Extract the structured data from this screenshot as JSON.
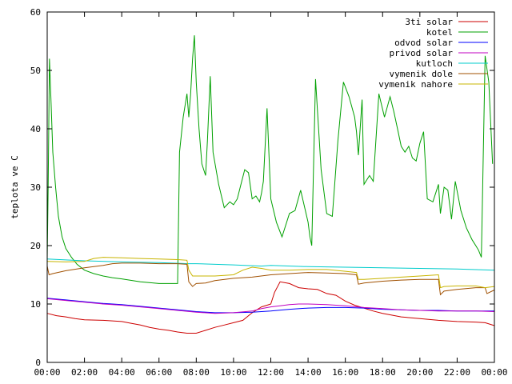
{
  "chart_data": {
    "type": "line",
    "title": "",
    "xlabel": "",
    "ylabel": "teplota ve C",
    "ylim": [
      0,
      60
    ],
    "xlim": [
      0,
      24
    ],
    "x_tick_labels": [
      "00:00",
      "02:00",
      "04:00",
      "06:00",
      "08:00",
      "10:00",
      "12:00",
      "14:00",
      "16:00",
      "18:00",
      "20:00",
      "22:00",
      "00:00"
    ],
    "y_tick_labels": [
      "0",
      "10",
      "20",
      "30",
      "40",
      "50",
      "60"
    ],
    "grid": false,
    "legend_position": "top-right",
    "series": [
      {
        "name": "3ti solar",
        "color": "#cc0000",
        "x": [
          0,
          0.5,
          1,
          1.5,
          2,
          3,
          4,
          4.5,
          5,
          5.5,
          6,
          6.5,
          7,
          7.5,
          8,
          8.5,
          9,
          9.5,
          10,
          10.5,
          11,
          11.5,
          11.8,
          12,
          12.2,
          12.5,
          13,
          13.5,
          14,
          14.5,
          15,
          15.5,
          16,
          16.5,
          17,
          17.5,
          18,
          19,
          20,
          21,
          22,
          23,
          23.5,
          24
        ],
        "y": [
          8.4,
          8.0,
          7.8,
          7.5,
          7.3,
          7.2,
          7.0,
          6.7,
          6.4,
          6.0,
          5.7,
          5.5,
          5.2,
          5.0,
          5.0,
          5.5,
          6.0,
          6.4,
          6.8,
          7.2,
          8.5,
          9.5,
          9.8,
          10.0,
          12.0,
          13.8,
          13.5,
          12.8,
          12.6,
          12.5,
          11.8,
          11.5,
          10.5,
          9.8,
          9.3,
          8.8,
          8.4,
          7.8,
          7.5,
          7.2,
          7.0,
          6.9,
          6.8,
          6.3
        ]
      },
      {
        "name": "kotel",
        "color": "#00a000",
        "x": [
          0,
          0.05,
          0.12,
          0.2,
          0.3,
          0.45,
          0.6,
          0.8,
          1.0,
          1.3,
          1.6,
          2.0,
          2.5,
          3.0,
          3.5,
          4.0,
          5.0,
          6.0,
          7.0,
          7.1,
          7.3,
          7.5,
          7.6,
          7.7,
          7.8,
          7.9,
          8.0,
          8.15,
          8.3,
          8.5,
          8.6,
          8.75,
          8.9,
          9.2,
          9.5,
          9.8,
          10.0,
          10.2,
          10.4,
          10.6,
          10.8,
          11.0,
          11.2,
          11.4,
          11.5,
          11.6,
          11.8,
          12.0,
          12.3,
          12.6,
          13.0,
          13.3,
          13.6,
          14.0,
          14.1,
          14.2,
          14.4,
          14.7,
          15.0,
          15.3,
          15.6,
          15.9,
          16.2,
          16.5,
          16.6,
          16.7,
          16.9,
          17.0,
          17.3,
          17.5,
          17.8,
          18.1,
          18.4,
          18.6,
          18.8,
          19.0,
          19.2,
          19.4,
          19.6,
          19.8,
          20.0,
          20.2,
          20.4,
          20.7,
          20.9,
          21.0,
          21.1,
          21.3,
          21.5,
          21.7,
          21.9,
          22.2,
          22.5,
          22.8,
          23.0,
          23.15,
          23.3,
          23.5,
          23.7,
          23.9
        ],
        "y": [
          17.5,
          30,
          52,
          45,
          36,
          30,
          25,
          21.5,
          19.5,
          18.0,
          16.8,
          15.8,
          15.2,
          14.8,
          14.5,
          14.3,
          13.8,
          13.5,
          13.5,
          36,
          42,
          46,
          42,
          46,
          52,
          56,
          48,
          40,
          34,
          32,
          38,
          49,
          36,
          30.5,
          26.5,
          27.5,
          27,
          28,
          30.5,
          33,
          32.5,
          28,
          28.5,
          27.5,
          29,
          31,
          43.5,
          28,
          24,
          21.5,
          25.5,
          26,
          29.5,
          24,
          21.5,
          20,
          48.5,
          33,
          25.5,
          25,
          38,
          48,
          45.5,
          42,
          39.5,
          35.5,
          45,
          30.5,
          32,
          31,
          46,
          42,
          45.5,
          43,
          40,
          37,
          36,
          37,
          35,
          34.5,
          37.5,
          39.5,
          28,
          27.5,
          29.5,
          30.5,
          25.5,
          30,
          29.5,
          24.5,
          31,
          26,
          23,
          21,
          20,
          19.2,
          18,
          52.5,
          48,
          34
        ]
      },
      {
        "name": "odvod solar",
        "color": "#0000ff",
        "x": [
          0,
          1,
          2,
          3,
          4,
          5,
          6,
          7,
          8,
          9,
          10,
          11,
          12,
          13,
          14,
          15,
          16,
          17,
          18,
          19,
          20,
          21,
          22,
          23,
          24
        ],
        "y": [
          11.0,
          10.7,
          10.4,
          10.1,
          9.9,
          9.6,
          9.3,
          9.0,
          8.7,
          8.5,
          8.5,
          8.6,
          8.8,
          9.1,
          9.3,
          9.4,
          9.4,
          9.3,
          9.1,
          9.0,
          8.9,
          8.9,
          8.8,
          8.8,
          8.8
        ]
      },
      {
        "name": "privod solar",
        "color": "#c000c0",
        "x": [
          0,
          1,
          2,
          3,
          4,
          5,
          6,
          7,
          8,
          9,
          10,
          11,
          11.5,
          12,
          12.5,
          13,
          13.5,
          14,
          15,
          16,
          17,
          18,
          19,
          20,
          21,
          22,
          23,
          24
        ],
        "y": [
          10.9,
          10.6,
          10.3,
          10.0,
          9.8,
          9.5,
          9.2,
          8.9,
          8.6,
          8.4,
          8.5,
          8.8,
          9.2,
          9.5,
          9.7,
          9.9,
          10.0,
          10.0,
          9.9,
          9.7,
          9.4,
          9.2,
          9.0,
          8.9,
          8.8,
          8.8,
          8.8,
          8.7
        ]
      },
      {
        "name": "kutloch",
        "color": "#00cccc",
        "x": [
          0,
          2,
          4,
          6,
          7.6,
          8,
          10,
          11.5,
          12,
          14,
          16,
          18,
          20,
          22,
          24
        ],
        "y": [
          17.7,
          17.4,
          17.2,
          17.1,
          16.9,
          16.9,
          16.7,
          16.5,
          16.6,
          16.4,
          16.3,
          16.2,
          16.1,
          16.0,
          15.8
        ]
      },
      {
        "name": "vymenik dole",
        "color": "#a05000",
        "x": [
          0,
          0.1,
          0.3,
          1,
          2,
          3,
          3.5,
          4,
          5,
          6,
          7,
          7.5,
          7.6,
          7.8,
          8,
          8.5,
          9,
          10,
          11,
          12,
          13,
          14,
          15,
          16,
          16.6,
          16.7,
          17,
          18,
          19,
          20,
          21,
          21.1,
          21.3,
          22,
          23,
          23.5,
          23.6,
          24
        ],
        "y": [
          16.5,
          15.0,
          15.2,
          15.7,
          16.2,
          16.6,
          16.9,
          17.0,
          17.0,
          16.9,
          16.9,
          16.8,
          13.8,
          13.0,
          13.5,
          13.6,
          14.0,
          14.4,
          14.6,
          15.0,
          15.2,
          15.4,
          15.3,
          15.2,
          15.0,
          13.4,
          13.6,
          13.9,
          14.1,
          14.2,
          14.2,
          11.6,
          12.2,
          12.5,
          12.8,
          12.8,
          11.8,
          12.4
        ]
      },
      {
        "name": "vymenik nahore",
        "color": "#c8b400",
        "x": [
          0,
          1,
          2,
          2.5,
          3,
          4,
          5,
          6,
          7,
          7.5,
          7.6,
          7.8,
          8,
          9,
          10,
          10.5,
          11,
          11.5,
          12,
          13,
          14,
          15,
          16,
          16.6,
          16.7,
          17,
          18,
          19,
          20,
          21,
          21.1,
          21.3,
          22,
          23,
          23.5,
          24
        ],
        "y": [
          17.3,
          17.2,
          17.3,
          17.8,
          18.0,
          17.9,
          17.8,
          17.7,
          17.6,
          17.5,
          15.8,
          14.8,
          14.8,
          14.8,
          15.0,
          15.8,
          16.3,
          16.1,
          15.8,
          15.8,
          15.9,
          15.9,
          15.6,
          15.4,
          14.2,
          14.2,
          14.4,
          14.6,
          14.8,
          15.0,
          12.8,
          13.0,
          13.1,
          13.1,
          12.8,
          13.0
        ]
      }
    ]
  }
}
